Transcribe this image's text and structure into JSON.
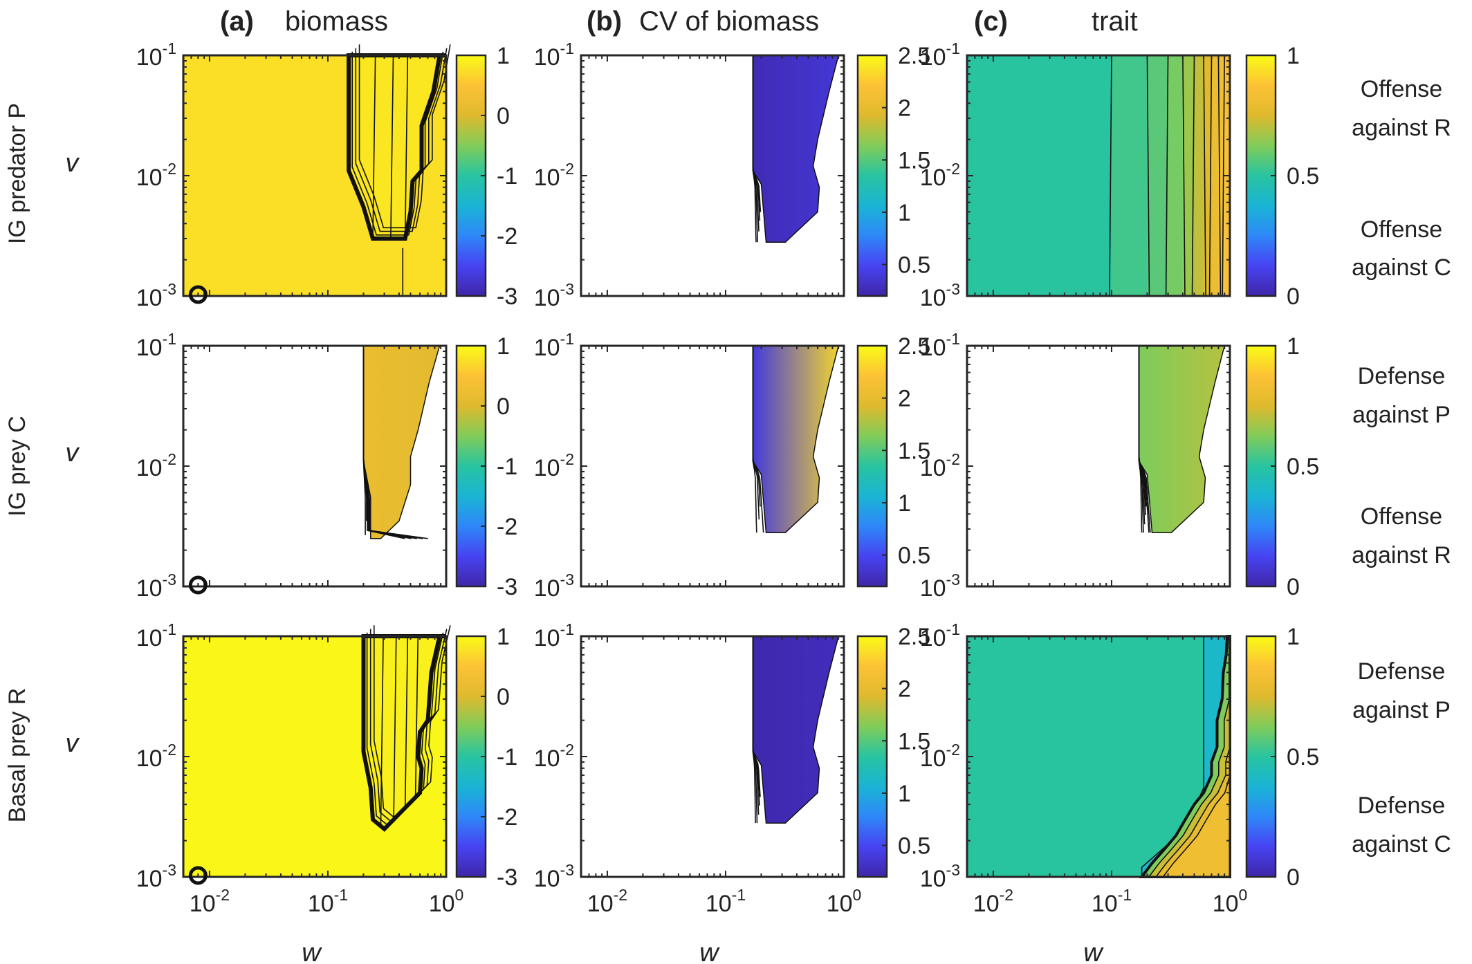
{
  "columns": [
    {
      "letter": "(a)",
      "name": "biomass"
    },
    {
      "letter": "(b)",
      "name": "CV of biomass"
    },
    {
      "letter": "(c)",
      "name": "trait"
    }
  ],
  "rows": [
    {
      "label": "IG predator P",
      "trait_top": [
        "Offense",
        "against R"
      ],
      "trait_bottom": [
        "Offense",
        "against C"
      ]
    },
    {
      "label": "IG prey C",
      "trait_top": [
        "Defense",
        "against P"
      ],
      "trait_bottom": [
        "Offense",
        "against R"
      ]
    },
    {
      "label": "Basal prey R",
      "trait_top": [
        "Defense",
        "against P"
      ],
      "trait_bottom": [
        "Defense",
        "against C"
      ]
    }
  ],
  "axes": {
    "xlabel": "w",
    "ylabel": "v"
  },
  "colormap": [
    "#3e26a8",
    "#4743f2",
    "#2e87f8",
    "#1ab4d4",
    "#28c4a0",
    "#81cc59",
    "#dfb92d",
    "#fcc236",
    "#f9fb15"
  ],
  "colorbars": {
    "biomass": {
      "min": -3,
      "max": 1,
      "ticks": [
        "1",
        "0",
        "-1",
        "-2",
        "-3"
      ],
      "tick_values": [
        1,
        0,
        -1,
        -2,
        -3
      ]
    },
    "cv": {
      "min": 0.2,
      "max": 2.5,
      "ticks": [
        "2.5",
        "2",
        "1.5",
        "1",
        "0.5"
      ],
      "tick_values": [
        2.5,
        2,
        1.5,
        1,
        0.5
      ]
    },
    "trait": {
      "min": 0,
      "max": 1,
      "ticks": [
        "1",
        "0.5",
        "0"
      ],
      "tick_values": [
        1,
        0.5,
        0
      ]
    }
  },
  "chart_data": {
    "type": "heatmap",
    "title": "",
    "xlabel": "w",
    "ylabel": "v",
    "x_scale": "log",
    "y_scale": "log",
    "xlim": [
      0.006,
      1
    ],
    "ylim": [
      0.001,
      0.1
    ],
    "x_ticks": [
      {
        "base": "10",
        "exp": "-2",
        "value": 0.01
      },
      {
        "base": "10",
        "exp": "-1",
        "value": 0.1
      },
      {
        "base": "10",
        "exp": "0",
        "value": 1
      }
    ],
    "y_ticks": [
      {
        "base": "10",
        "exp": "-1",
        "value": 0.1
      },
      {
        "base": "10",
        "exp": "-2",
        "value": 0.01
      },
      {
        "base": "10",
        "exp": "-3",
        "value": 0.001
      }
    ],
    "marker": {
      "shape": "circle",
      "w": 0.008,
      "v": 0.001
    },
    "panels": [
      {
        "id": "P-biomass",
        "row": 0,
        "col": 0,
        "background": 0.75,
        "band": [
          0.87,
          0.9,
          0.93
        ],
        "region_value": 0.82,
        "region": [
          [
            0.15,
            0.1
          ],
          [
            0.15,
            0.011
          ],
          [
            0.2,
            0.0055
          ],
          [
            0.24,
            0.003
          ],
          [
            0.45,
            0.003
          ],
          [
            0.5,
            0.005
          ],
          [
            0.52,
            0.009
          ],
          [
            0.62,
            0.011
          ],
          [
            0.62,
            0.026
          ],
          [
            0.78,
            0.05
          ],
          [
            0.88,
            0.1
          ]
        ],
        "contour_ws": [
          0.24,
          0.34,
          0.45
        ],
        "vertical_line": {
          "w": 0.43,
          "v_min": 0.001,
          "v_max": 0.0025
        }
      },
      {
        "id": "P-cv",
        "row": 0,
        "col": 1,
        "region": [
          [
            0.17,
            0.1
          ],
          [
            0.17,
            0.011
          ],
          [
            0.2,
            0.0085
          ],
          [
            0.22,
            0.0028
          ],
          [
            0.32,
            0.0028
          ],
          [
            0.6,
            0.005
          ],
          [
            0.62,
            0.008
          ],
          [
            0.55,
            0.012
          ],
          [
            0.6,
            0.02
          ],
          [
            0.75,
            0.05
          ],
          [
            0.9,
            0.1
          ]
        ],
        "value_left": 0.25,
        "value_right": 0.38,
        "contour_ws": [
          0.26,
          0.32,
          0.4,
          0.5,
          0.6
        ]
      },
      {
        "id": "P-trait",
        "row": 0,
        "col": 2,
        "background": 0.5,
        "boundaries": [
          0.1,
          0.2,
          0.3,
          0.4,
          0.5,
          0.6,
          0.7,
          0.8,
          0.9
        ],
        "step_values": [
          0.5,
          0.535,
          0.57,
          0.61,
          0.66,
          0.71,
          0.76,
          0.8,
          0.83,
          0.86
        ]
      },
      {
        "id": "C-biomass",
        "row": 1,
        "col": 0,
        "region": [
          [
            0.2,
            0.1
          ],
          [
            0.2,
            0.011
          ],
          [
            0.23,
            0.0055
          ],
          [
            0.23,
            0.0025
          ],
          [
            0.28,
            0.0025
          ],
          [
            0.4,
            0.0035
          ],
          [
            0.5,
            0.007
          ],
          [
            0.5,
            0.012
          ],
          [
            0.58,
            0.02
          ],
          [
            0.72,
            0.05
          ],
          [
            0.88,
            0.1
          ]
        ],
        "value_left": 0.2,
        "value_right": 0.05,
        "contour_ws": [
          0.3,
          0.4,
          0.48,
          0.55,
          0.62,
          0.7,
          0.78
        ]
      },
      {
        "id": "C-cv",
        "row": 1,
        "col": 1,
        "region": [
          [
            0.17,
            0.1
          ],
          [
            0.17,
            0.011
          ],
          [
            0.2,
            0.0085
          ],
          [
            0.22,
            0.0028
          ],
          [
            0.32,
            0.0028
          ],
          [
            0.6,
            0.005
          ],
          [
            0.62,
            0.008
          ],
          [
            0.55,
            0.012
          ],
          [
            0.6,
            0.02
          ],
          [
            0.75,
            0.05
          ],
          [
            0.9,
            0.1
          ]
        ],
        "value_left": 0.4,
        "value_right": 2.35,
        "contour_ws": [
          0.28,
          0.42,
          0.55,
          0.7
        ]
      },
      {
        "id": "C-trait",
        "row": 1,
        "col": 2,
        "region": [
          [
            0.17,
            0.1
          ],
          [
            0.17,
            0.011
          ],
          [
            0.2,
            0.0085
          ],
          [
            0.22,
            0.0028
          ],
          [
            0.32,
            0.0028
          ],
          [
            0.6,
            0.005
          ],
          [
            0.62,
            0.008
          ],
          [
            0.55,
            0.012
          ],
          [
            0.6,
            0.02
          ],
          [
            0.75,
            0.05
          ],
          [
            0.9,
            0.1
          ]
        ],
        "value_left": 0.62,
        "value_right": 0.7,
        "contour_ws": [
          0.25,
          0.31,
          0.38,
          0.46,
          0.55,
          0.65,
          0.78
        ]
      },
      {
        "id": "R-biomass",
        "row": 2,
        "col": 0,
        "background": 0.96,
        "band": [
          0.26,
          0.3,
          0.34
        ],
        "region_value": 0.9,
        "region": [
          [
            0.2,
            0.1
          ],
          [
            0.2,
            0.011
          ],
          [
            0.23,
            0.0055
          ],
          [
            0.24,
            0.003
          ],
          [
            0.3,
            0.0025
          ],
          [
            0.42,
            0.0035
          ],
          [
            0.6,
            0.005
          ],
          [
            0.62,
            0.008
          ],
          [
            0.58,
            0.01
          ],
          [
            0.6,
            0.016
          ],
          [
            0.7,
            0.02
          ],
          [
            0.75,
            0.05
          ],
          [
            0.88,
            0.1
          ]
        ],
        "contour_ws": [
          0.28,
          0.36,
          0.45,
          0.55
        ]
      },
      {
        "id": "R-cv",
        "row": 2,
        "col": 1,
        "region": [
          [
            0.17,
            0.1
          ],
          [
            0.17,
            0.011
          ],
          [
            0.2,
            0.0085
          ],
          [
            0.22,
            0.0028
          ],
          [
            0.32,
            0.0028
          ],
          [
            0.6,
            0.005
          ],
          [
            0.62,
            0.008
          ],
          [
            0.55,
            0.012
          ],
          [
            0.6,
            0.02
          ],
          [
            0.75,
            0.05
          ],
          [
            0.9,
            0.1
          ]
        ],
        "value_left": 0.22,
        "value_right": 0.28,
        "contour_ws": [
          0.24,
          0.3,
          0.38,
          0.46,
          0.55
        ]
      },
      {
        "id": "R-trait",
        "row": 2,
        "col": 2,
        "background": 0.5,
        "low_value": 0.4,
        "high_steps": [
          0.62,
          0.72,
          0.78,
          0.82
        ],
        "low_region": [
          [
            0.6,
            0.1
          ],
          [
            0.6,
            0.0055
          ],
          [
            0.42,
            0.0025
          ],
          [
            0.18,
            0.0012
          ],
          [
            0.18,
            0.001
          ]
        ],
        "boundary": [
          [
            0.95,
            0.1
          ],
          [
            0.93,
            0.07
          ],
          [
            0.88,
            0.05
          ],
          [
            0.86,
            0.03
          ],
          [
            0.78,
            0.02
          ],
          [
            0.78,
            0.012
          ],
          [
            0.7,
            0.009
          ],
          [
            0.7,
            0.007
          ],
          [
            0.6,
            0.005
          ],
          [
            0.5,
            0.004
          ],
          [
            0.42,
            0.003
          ],
          [
            0.35,
            0.0022
          ],
          [
            0.28,
            0.0017
          ],
          [
            0.22,
            0.0013
          ],
          [
            0.18,
            0.001
          ]
        ]
      }
    ]
  }
}
